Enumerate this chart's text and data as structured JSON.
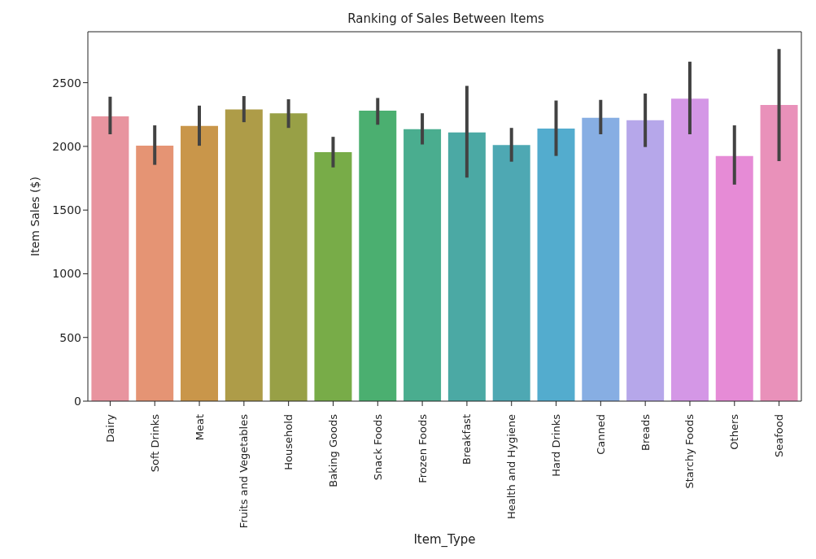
{
  "chart_data": {
    "type": "bar",
    "title": "Ranking of Sales Between Items",
    "xlabel": "Item_Type",
    "ylabel": "Item Sales ($)",
    "categories": [
      "Dairy",
      "Soft Drinks",
      "Meat",
      "Fruits and Vegetables",
      "Household",
      "Baking Goods",
      "Snack Foods",
      "Frozen Foods",
      "Breakfast",
      "Health and Hygiene",
      "Hard Drinks",
      "Canned",
      "Breads",
      "Starchy Foods",
      "Others",
      "Seafood"
    ],
    "values": [
      2235,
      2005,
      2160,
      2290,
      2260,
      1955,
      2280,
      2135,
      2110,
      2010,
      2140,
      2225,
      2205,
      2375,
      1925,
      2325
    ],
    "errors": [
      [
        2095,
        2390
      ],
      [
        1855,
        2165
      ],
      [
        2005,
        2320
      ],
      [
        2190,
        2395
      ],
      [
        2145,
        2370
      ],
      [
        1835,
        2075
      ],
      [
        2170,
        2380
      ],
      [
        2015,
        2260
      ],
      [
        1755,
        2475
      ],
      [
        1880,
        2145
      ],
      [
        1925,
        2360
      ],
      [
        2095,
        2365
      ],
      [
        1995,
        2415
      ],
      [
        2095,
        2665
      ],
      [
        1700,
        2165
      ],
      [
        1885,
        2765
      ]
    ],
    "colors": [
      "#e8949f",
      "#e59474",
      "#c9964a",
      "#ae9c48",
      "#98a046",
      "#78ac48",
      "#4baf70",
      "#4aad8f",
      "#4ba9a4",
      "#4ea8b3",
      "#53acce",
      "#87aee3",
      "#b6a7ea",
      "#d497e6",
      "#e68bd6",
      "#e991ba"
    ],
    "ylim": [
      0,
      2900
    ],
    "yticks": [
      0,
      500,
      1000,
      1500,
      2000,
      2500
    ],
    "grid": false,
    "legend": false
  }
}
